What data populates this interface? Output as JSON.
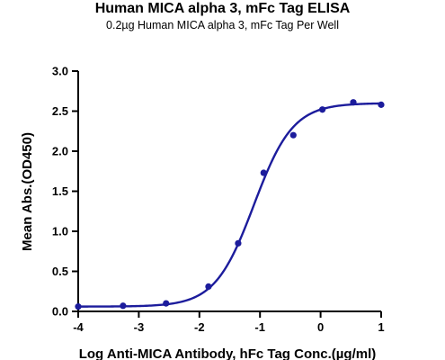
{
  "chart_data": {
    "type": "scatter",
    "title": "Human MICA alpha 3, mFc Tag ELISA",
    "subtitle": "0.2µg Human MICA alpha 3, mFc Tag Per Well",
    "xlabel": "Log Anti-MICA Antibody, hFc Tag Conc.(µg/ml)",
    "ylabel": "Mean Abs.(OD450)",
    "xlim": [
      -4,
      1
    ],
    "ylim": [
      0.0,
      3.0
    ],
    "x_ticks": [
      -4,
      -3,
      -2,
      -1,
      0,
      1
    ],
    "y_ticks": [
      "0.0",
      "0.5",
      "1.0",
      "1.5",
      "2.0",
      "2.5",
      "3.0"
    ],
    "grid": false,
    "color": "#1c1c9c",
    "series": [
      {
        "x": [
          -4.0,
          -3.26,
          -2.55,
          -1.85,
          -1.36,
          -0.94,
          -0.45,
          0.03,
          0.54,
          1.0
        ],
        "y": [
          0.06,
          0.07,
          0.1,
          0.31,
          0.85,
          1.73,
          2.2,
          2.52,
          2.61,
          2.58
        ]
      }
    ],
    "fit": {
      "model": "4PL",
      "bottom": 0.06,
      "top": 2.6,
      "log_ec50": -1.1,
      "hill_slope": 1.35
    }
  }
}
